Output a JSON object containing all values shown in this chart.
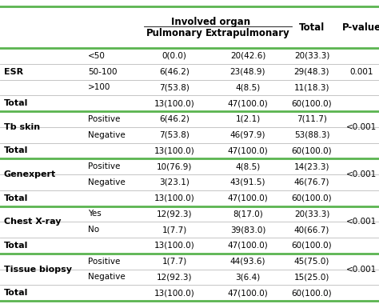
{
  "title_main": "Involved organ",
  "green_line_color": "#5BB450",
  "rows": [
    {
      "cat": "ESR",
      "sub": "<50",
      "pul": "0(0.0)",
      "ext": "20(42.6)",
      "tot": "20(33.3)",
      "pval": ""
    },
    {
      "cat": "ESR",
      "sub": "50-100",
      "pul": "6(46.2)",
      "ext": "23(48.9)",
      "tot": "29(48.3)",
      "pval": "0.001"
    },
    {
      "cat": "ESR",
      "sub": ">100",
      "pul": "7(53.8)",
      "ext": "4(8.5)",
      "tot": "11(18.3)",
      "pval": ""
    },
    {
      "cat": "Total",
      "sub": "",
      "pul": "13(100.0)",
      "ext": "47(100.0)",
      "tot": "60(100.0)",
      "pval": ""
    },
    {
      "cat": "Tb skin",
      "sub": "Positive",
      "pul": "6(46.2)",
      "ext": "1(2.1)",
      "tot": "7(11.7)",
      "pval": ""
    },
    {
      "cat": "Tb skin",
      "sub": "Negative",
      "pul": "7(53.8)",
      "ext": "46(97.9)",
      "tot": "53(88.3)",
      "pval": "<0.001"
    },
    {
      "cat": "Total",
      "sub": "",
      "pul": "13(100.0)",
      "ext": "47(100.0)",
      "tot": "60(100.0)",
      "pval": ""
    },
    {
      "cat": "Genexpert",
      "sub": "Positive",
      "pul": "10(76.9)",
      "ext": "4(8.5)",
      "tot": "14(23.3)",
      "pval": ""
    },
    {
      "cat": "Genexpert",
      "sub": "Negative",
      "pul": "3(23.1)",
      "ext": "43(91.5)",
      "tot": "46(76.7)",
      "pval": "<0.001"
    },
    {
      "cat": "Total",
      "sub": "",
      "pul": "13(100.0)",
      "ext": "47(100.0)",
      "tot": "60(100.0)",
      "pval": ""
    },
    {
      "cat": "Chest X-ray",
      "sub": "Yes",
      "pul": "12(92.3)",
      "ext": "8(17.0)",
      "tot": "20(33.3)",
      "pval": ""
    },
    {
      "cat": "Chest X-ray",
      "sub": "No",
      "pul": "1(7.7)",
      "ext": "39(83.0)",
      "tot": "40(66.7)",
      "pval": "<0.001"
    },
    {
      "cat": "Total",
      "sub": "",
      "pul": "13(100.0)",
      "ext": "47(100.0)",
      "tot": "60(100.0)",
      "pval": ""
    },
    {
      "cat": "Tissue biopsy",
      "sub": "Positive",
      "pul": "1(7.7)",
      "ext": "44(93.6)",
      "tot": "45(75.0)",
      "pval": ""
    },
    {
      "cat": "Tissue biopsy",
      "sub": "Negative",
      "pul": "12(92.3)",
      "ext": "3(6.4)",
      "tot": "15(25.0)",
      "pval": "<0.001"
    },
    {
      "cat": "Total",
      "sub": "",
      "pul": "13(100.0)",
      "ext": "47(100.0)",
      "tot": "60(100.0)",
      "pval": ""
    }
  ],
  "sections": [
    {
      "cat": "ESR",
      "data_rows": [
        0,
        1,
        2
      ],
      "total_row": 3,
      "pval_row": 1
    },
    {
      "cat": "Tb skin",
      "data_rows": [
        4,
        5
      ],
      "total_row": 6,
      "pval_row": 5
    },
    {
      "cat": "Genexpert",
      "data_rows": [
        7,
        8
      ],
      "total_row": 9,
      "pval_row": 8
    },
    {
      "cat": "Chest X-ray",
      "data_rows": [
        10,
        11
      ],
      "total_row": 12,
      "pval_row": 11
    },
    {
      "cat": "Tissue biopsy",
      "data_rows": [
        13,
        14
      ],
      "total_row": 15,
      "pval_row": 14
    }
  ]
}
